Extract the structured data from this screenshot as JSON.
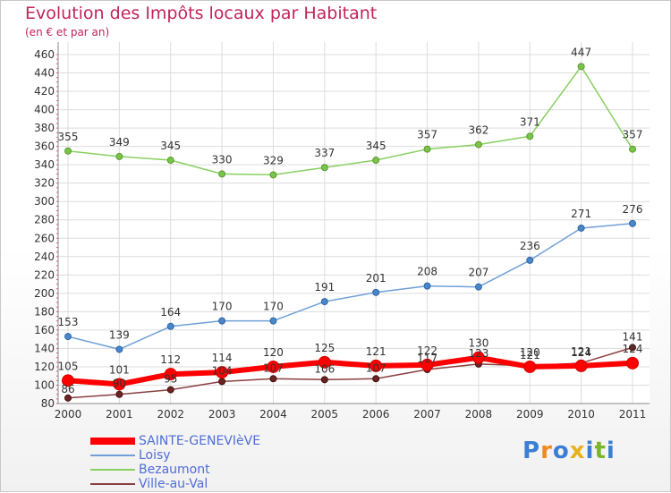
{
  "title": "Evolution des Impôts locaux par Habitant",
  "subtitle": "(en € et par an)",
  "logo": {
    "letters": [
      "P",
      "r",
      "o",
      "x",
      "i",
      "t",
      "i"
    ],
    "colors": [
      "#3a7fd4",
      "#f08a1c",
      "#3a7fd4",
      "#e8b21a",
      "#3a7fd4",
      "#7ab52a",
      "#3a7fd4"
    ]
  },
  "chart_data": {
    "type": "line",
    "title": "Evolution des Impôts locaux par Habitant",
    "subtitle": "(en € et par an)",
    "xlabel": "",
    "ylabel": "",
    "x": [
      "2000",
      "2001",
      "2002",
      "2003",
      "2004",
      "2005",
      "2006",
      "2007",
      "2008",
      "2009",
      "2010",
      "2011"
    ],
    "yticks": [
      80,
      100,
      120,
      140,
      160,
      180,
      200,
      220,
      240,
      260,
      280,
      300,
      320,
      340,
      360,
      380,
      400,
      420,
      440,
      460
    ],
    "ylim": [
      80,
      460
    ],
    "grid": true,
    "legend_position": "bottom-left",
    "series": [
      {
        "name": "SAINTE-GENEVIèVE",
        "color": "#ff0000",
        "values": [
          105,
          101,
          112,
          114,
          120,
          125,
          121,
          122,
          130,
          120,
          121,
          124
        ],
        "labels": [
          "105",
          "101",
          "112",
          "114",
          "120",
          "125",
          "121",
          "122",
          "130",
          "120",
          "121",
          "124"
        ]
      },
      {
        "name": "Loisy",
        "color": "#6fa0d8",
        "values": [
          153,
          139,
          164,
          170,
          170,
          191,
          201,
          208,
          207,
          236,
          271,
          276
        ],
        "labels": [
          "153",
          "139",
          "164",
          "170",
          "170",
          "191",
          "201",
          "208",
          "207",
          "236",
          "271",
          "276"
        ]
      },
      {
        "name": "Bezaumont",
        "color": "#88d060",
        "values": [
          355,
          349,
          345,
          330,
          329,
          337,
          345,
          357,
          362,
          371,
          447,
          357
        ],
        "labels": [
          "355",
          "349",
          "345",
          "330",
          "329",
          "337",
          "345",
          "357",
          "362",
          "371",
          "447",
          "357"
        ]
      },
      {
        "name": "Ville-au-Val",
        "color": "#8b4040",
        "values": [
          86,
          90,
          95,
          104,
          107,
          106,
          107,
          117,
          123,
          121,
          124,
          141
        ],
        "labels": [
          "86",
          "90",
          "95",
          "104",
          "107",
          "106",
          "107",
          "117",
          "123",
          "121",
          "124",
          "141"
        ]
      }
    ]
  }
}
